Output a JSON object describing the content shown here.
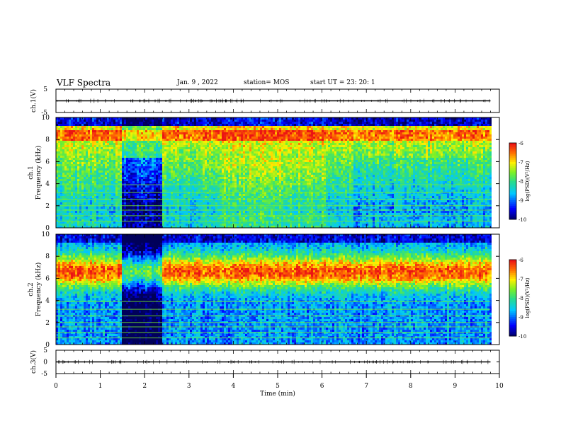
{
  "header": {
    "title": "VLF Spectra",
    "date": "Jan. 9 , 2022",
    "station": "station= MOS",
    "start": "start UT = 23: 20: 1"
  },
  "chart_data": [
    {
      "type": "line",
      "panel": "ch1-waveform",
      "ylabel": "ch.1(V)",
      "ylim": [
        -5,
        5
      ],
      "yticks": [
        "5",
        "-5"
      ],
      "xlim": [
        0,
        10
      ],
      "series": [
        {
          "x": [
            0,
            9.8
          ],
          "values": [
            0,
            0
          ]
        }
      ]
    },
    {
      "type": "heatmap",
      "panel": "ch1-spectrogram",
      "ylabel": "ch.1\nFrequency (kHz)",
      "ylabel_lines": [
        "ch.1",
        "Frequency (kHz)"
      ],
      "ylim": [
        0,
        10
      ],
      "yticks": [
        "0",
        "2",
        "4",
        "6",
        "8",
        "10"
      ],
      "xlim": [
        0,
        10
      ],
      "colorbar": {
        "label": "log(PSD)(V²/Hz)",
        "ticks": [
          "-6",
          "-7",
          "-8",
          "-9",
          "-10"
        ],
        "range": [
          -10,
          -6
        ]
      },
      "segments": [
        {
          "t0": 0.0,
          "t1": 1.45,
          "level": "moderate"
        },
        {
          "t0": 1.45,
          "t1": 2.35,
          "level": "quiet"
        },
        {
          "t0": 2.35,
          "t1": 3.55,
          "level": "moderate"
        },
        {
          "t0": 3.55,
          "t1": 6.05,
          "level": "elevated"
        },
        {
          "t0": 6.05,
          "t1": 6.7,
          "level": "moderate"
        },
        {
          "t0": 6.7,
          "t1": 9.8,
          "level": "moderate-low"
        }
      ]
    },
    {
      "type": "heatmap",
      "panel": "ch2-spectrogram",
      "ylabel": "ch.2\nFrequency (kHz)",
      "ylabel_lines": [
        "ch.2",
        "Frequency (kHz)"
      ],
      "ylim": [
        0,
        10
      ],
      "yticks": [
        "0",
        "2",
        "4",
        "6",
        "8",
        "10"
      ],
      "xlim": [
        0,
        10
      ],
      "colorbar": {
        "label": "log(PSD)(V²/Hz)",
        "ticks": [
          "-6",
          "-7",
          "-8",
          "-9",
          "-10"
        ],
        "range": [
          -10,
          -6
        ]
      },
      "peak_band_khz": [
        5.5,
        8.0
      ],
      "segments": [
        {
          "t0": 0.0,
          "t1": 1.45,
          "level": "moderate"
        },
        {
          "t0": 1.45,
          "t1": 2.35,
          "level": "quiet"
        },
        {
          "t0": 2.35,
          "t1": 9.8,
          "level": "moderate"
        }
      ]
    },
    {
      "type": "line",
      "panel": "ch3-waveform",
      "ylabel": "ch.3(V)",
      "ylim": [
        -5,
        5
      ],
      "yticks": [
        "5",
        "0",
        "-5"
      ],
      "xlim": [
        0,
        10
      ],
      "series": [
        {
          "x": [
            0,
            9.8
          ],
          "values": [
            0,
            0
          ]
        }
      ]
    }
  ],
  "xaxis": {
    "label": "Time (min)",
    "ticks": [
      "0",
      "1",
      "2",
      "3",
      "4",
      "5",
      "6",
      "7",
      "8",
      "9",
      "10"
    ]
  }
}
